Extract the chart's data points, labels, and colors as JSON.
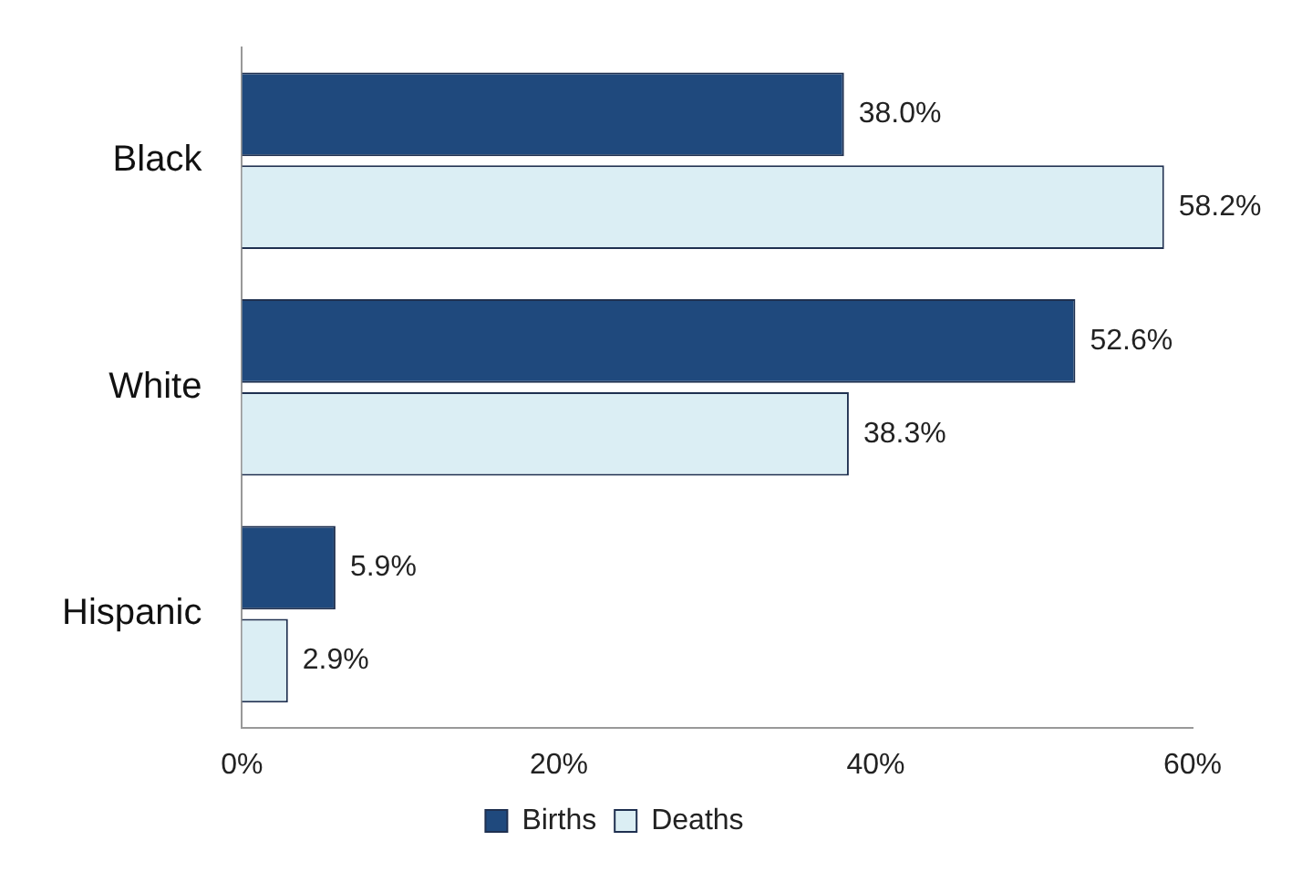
{
  "chart_data": {
    "type": "bar",
    "orientation": "horizontal",
    "categories": [
      "Black",
      "White",
      "Hispanic"
    ],
    "series": [
      {
        "name": "Births",
        "color": "#1f497d",
        "values": [
          38.0,
          52.6,
          5.9
        ],
        "value_labels": [
          "38.0%",
          "52.6%",
          "5.9%"
        ]
      },
      {
        "name": "Deaths",
        "color": "#dbeef4",
        "values": [
          58.2,
          38.3,
          2.9
        ],
        "value_labels": [
          "58.2%",
          "38.3%",
          "2.9%"
        ]
      }
    ],
    "xlim": [
      0,
      60
    ],
    "xticks": [
      {
        "value": 0,
        "label": "0%"
      },
      {
        "value": 20,
        "label": "20%"
      },
      {
        "value": 40,
        "label": "40%"
      },
      {
        "value": 60,
        "label": "60%"
      }
    ],
    "grid": false,
    "legend": "bottom"
  }
}
